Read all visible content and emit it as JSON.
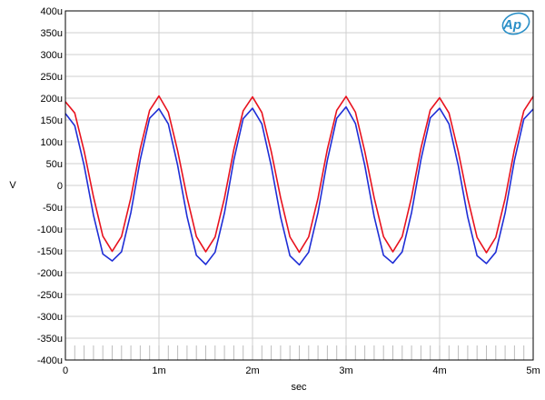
{
  "chart_data": {
    "type": "line",
    "title": "",
    "xlabel": "sec",
    "ylabel": "V",
    "xlim": [
      0,
      0.005
    ],
    "ylim": [
      -0.0004,
      0.0004
    ],
    "grid": true,
    "x_ticks": [
      {
        "value": 0,
        "label": "0"
      },
      {
        "value": 0.001,
        "label": "1m"
      },
      {
        "value": 0.002,
        "label": "2m"
      },
      {
        "value": 0.003,
        "label": "3m"
      },
      {
        "value": 0.004,
        "label": "4m"
      },
      {
        "value": 0.005,
        "label": "5m"
      }
    ],
    "y_ticks": [
      {
        "value": 0.0004,
        "label": "400u"
      },
      {
        "value": 0.00035,
        "label": "350u"
      },
      {
        "value": 0.0003,
        "label": "300u"
      },
      {
        "value": 0.00025,
        "label": "250u"
      },
      {
        "value": 0.0002,
        "label": "200u"
      },
      {
        "value": 0.00015,
        "label": "150u"
      },
      {
        "value": 0.0001,
        "label": "100u"
      },
      {
        "value": 5e-05,
        "label": "50u"
      },
      {
        "value": 0,
        "label": "0"
      },
      {
        "value": -5e-05,
        "label": "-50u"
      },
      {
        "value": -0.0001,
        "label": "-100u"
      },
      {
        "value": -0.00015,
        "label": "-150u"
      },
      {
        "value": -0.0002,
        "label": "-200u"
      },
      {
        "value": -0.00025,
        "label": "-250u"
      },
      {
        "value": -0.0003,
        "label": "-300u"
      },
      {
        "value": -0.00035,
        "label": "-350u"
      },
      {
        "value": -0.0004,
        "label": "-400u"
      }
    ],
    "x": [
      0,
      0.0001,
      0.0002,
      0.0003,
      0.0004,
      0.0005,
      0.0006,
      0.0007,
      0.0008,
      0.0009,
      0.001,
      0.0011,
      0.0012,
      0.0013,
      0.0014,
      0.0015,
      0.0016,
      0.0017,
      0.0018,
      0.0019,
      0.002,
      0.0021,
      0.0022,
      0.0023,
      0.0024,
      0.0025,
      0.0026,
      0.0027,
      0.0028,
      0.0029,
      0.003,
      0.0031,
      0.0032,
      0.0033,
      0.0034,
      0.0035,
      0.0036,
      0.0037,
      0.0038,
      0.0039,
      0.004,
      0.0041,
      0.0042,
      0.0043,
      0.0044,
      0.0045,
      0.0046,
      0.0047,
      0.0048,
      0.0049,
      0.005
    ],
    "series": [
      {
        "color": "#e8121e",
        "values": [
          0.000192,
          0.000166,
          7.9e-05,
          -2.6e-05,
          -0.000116,
          -0.000151,
          -0.000117,
          -2.8e-05,
          8.4e-05,
          0.000172,
          0.000205,
          0.000168,
          7.9e-05,
          -2.7e-05,
          -0.000117,
          -0.000152,
          -0.000118,
          -2.9e-05,
          8.2e-05,
          0.000171,
          0.000203,
          0.000167,
          7.8e-05,
          -2.8e-05,
          -0.000118,
          -0.000153,
          -0.000118,
          -2.9e-05,
          8.3e-05,
          0.000172,
          0.000204,
          0.000168,
          7.8e-05,
          -2.8e-05,
          -0.000117,
          -0.000152,
          -0.000117,
          -2.7e-05,
          8.5e-05,
          0.000173,
          0.000201,
          0.000166,
          7.7e-05,
          -2.9e-05,
          -0.000119,
          -0.000154,
          -0.000119,
          -3e-05,
          8.3e-05,
          0.000171,
          0.000204
        ]
      },
      {
        "color": "#1f2ed6",
        "values": [
          0.000165,
          0.000137,
          4.6e-05,
          -6.8e-05,
          -0.000157,
          -0.000173,
          -0.000152,
          -6.2e-05,
          5.9e-05,
          0.000154,
          0.000176,
          0.000141,
          4.6e-05,
          -7.1e-05,
          -0.00016,
          -0.000181,
          -0.000153,
          -6.3e-05,
          5.8e-05,
          0.000153,
          0.000177,
          0.000141,
          4.5e-05,
          -7.2e-05,
          -0.000161,
          -0.000182,
          -0.000153,
          -6.2e-05,
          5.8e-05,
          0.000154,
          0.00018,
          0.000142,
          4.6e-05,
          -7.1e-05,
          -0.00016,
          -0.000178,
          -0.000152,
          -6.2e-05,
          5.9e-05,
          0.000155,
          0.000177,
          0.000141,
          4.5e-05,
          -7.2e-05,
          -0.000161,
          -0.000179,
          -0.000153,
          -6.3e-05,
          5.8e-05,
          0.000152,
          0.000175
        ]
      }
    ]
  }
}
